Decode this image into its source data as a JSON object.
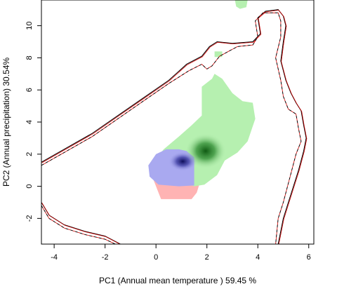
{
  "chart_data": {
    "type": "heatmap",
    "title": "",
    "xlabel": "PC1 (Annual mean temperature ) 59.45 %",
    "ylabel": "PC2 (Annual precipitation) 30.54%",
    "xlim": [
      -4.5,
      6.2
    ],
    "ylim": [
      -3.6,
      11.6
    ],
    "xticks": [
      -4,
      -2,
      0,
      2,
      4,
      6
    ],
    "yticks": [
      -2,
      0,
      2,
      4,
      6,
      8,
      10
    ],
    "grid": false,
    "colors": {
      "green_region": "#b6f0b0",
      "green_core": "#0f5a12",
      "blue_region": "#a9a9f0",
      "blue_core": "#0c0c5a",
      "pink_region": "#ffb3b3",
      "envelope_solid": "#000000",
      "envelope_dashed": "#cc0000"
    },
    "regions": [
      {
        "id": "green",
        "polygon": [
          [
            -0.2,
            1.3
          ],
          [
            0.3,
            2.3
          ],
          [
            0.9,
            3.1
          ],
          [
            1.4,
            3.8
          ],
          [
            1.8,
            4.4
          ],
          [
            1.8,
            6.2
          ],
          [
            2.2,
            6.7
          ],
          [
            2.3,
            7.0
          ],
          [
            2.6,
            6.7
          ],
          [
            3.0,
            5.8
          ],
          [
            3.4,
            5.3
          ],
          [
            3.8,
            5.2
          ],
          [
            3.9,
            4.2
          ],
          [
            3.6,
            2.8
          ],
          [
            3.2,
            2.1
          ],
          [
            2.7,
            1.6
          ],
          [
            2.4,
            0.7
          ],
          [
            1.9,
            0.1
          ],
          [
            1.5,
            0.0
          ],
          [
            1.0,
            0.3
          ],
          [
            0.2,
            0.7
          ]
        ]
      },
      {
        "id": "green-patch",
        "polygon": [
          [
            2.3,
            8.4
          ],
          [
            2.6,
            8.4
          ],
          [
            2.6,
            8.05
          ],
          [
            2.3,
            8.05
          ]
        ]
      },
      {
        "id": "green-top-patch",
        "polygon": [
          [
            3.1,
            11.6
          ],
          [
            3.6,
            11.6
          ],
          [
            3.55,
            11.15
          ],
          [
            3.3,
            11.05
          ],
          [
            3.15,
            11.2
          ]
        ]
      },
      {
        "id": "blue",
        "polygon": [
          [
            -0.3,
            1.3
          ],
          [
            -0.25,
            0.6
          ],
          [
            0.1,
            0.1
          ],
          [
            0.9,
            0.0
          ],
          [
            1.5,
            0.05
          ],
          [
            1.5,
            1.8
          ],
          [
            1.2,
            2.2
          ],
          [
            0.9,
            2.3
          ],
          [
            0.4,
            2.3
          ],
          [
            0.0,
            2.0
          ]
        ]
      },
      {
        "id": "pink",
        "polygon": [
          [
            -0.1,
            0.4
          ],
          [
            0.1,
            -0.4
          ],
          [
            0.2,
            -0.8
          ],
          [
            1.4,
            -0.8
          ],
          [
            1.6,
            -0.4
          ],
          [
            1.7,
            0.1
          ],
          [
            0.8,
            0.1
          ],
          [
            0.2,
            0.1
          ]
        ]
      }
    ],
    "cores": [
      {
        "id": "green-core",
        "x": 1.95,
        "y": 2.2,
        "rx": 0.8,
        "ry": 1.1
      },
      {
        "id": "blue-core",
        "x": 1.05,
        "y": 1.55,
        "rx": 0.55,
        "ry": 0.6
      }
    ],
    "envelope_lines": [
      {
        "id": "outer-solid",
        "style": "solid",
        "points": [
          [
            -4.5,
            1.5
          ],
          [
            -3.5,
            2.4
          ],
          [
            -2.5,
            3.3
          ],
          [
            -1.5,
            4.4
          ],
          [
            -0.5,
            5.5
          ],
          [
            0.5,
            6.6
          ],
          [
            1.2,
            7.6
          ],
          [
            1.8,
            8.1
          ],
          [
            2.1,
            8.7
          ],
          [
            2.4,
            9.0
          ],
          [
            3.0,
            8.9
          ],
          [
            3.8,
            9.0
          ],
          [
            4.1,
            9.5
          ],
          [
            4.0,
            10.5
          ],
          [
            4.3,
            10.9
          ],
          [
            4.8,
            11.0
          ],
          [
            5.0,
            10.6
          ],
          [
            5.1,
            10.0
          ],
          [
            5.0,
            9.0
          ],
          [
            4.9,
            7.8
          ],
          [
            5.1,
            6.6
          ],
          [
            5.3,
            5.8
          ],
          [
            5.5,
            5.2
          ],
          [
            5.7,
            4.7
          ],
          [
            5.8,
            3.8
          ],
          [
            5.9,
            3.0
          ],
          [
            5.8,
            2.2
          ],
          [
            5.6,
            1.0
          ],
          [
            5.2,
            -1.0
          ],
          [
            5.0,
            -2.0
          ],
          [
            4.8,
            -3.6
          ]
        ]
      },
      {
        "id": "inner-dashed",
        "style": "dashed",
        "points": [
          [
            -4.5,
            1.3
          ],
          [
            -3.5,
            2.2
          ],
          [
            -2.5,
            3.1
          ],
          [
            -1.5,
            4.2
          ],
          [
            -0.5,
            5.3
          ],
          [
            0.5,
            6.4
          ],
          [
            1.3,
            7.2
          ],
          [
            1.8,
            7.6
          ],
          [
            2.0,
            7.3
          ],
          [
            2.2,
            7.5
          ],
          [
            2.5,
            8.1
          ],
          [
            3.2,
            8.7
          ],
          [
            3.8,
            8.8
          ],
          [
            4.0,
            9.3
          ],
          [
            3.9,
            10.3
          ],
          [
            4.2,
            10.8
          ],
          [
            4.8,
            10.8
          ],
          [
            4.9,
            10.3
          ],
          [
            4.9,
            9.3
          ],
          [
            4.7,
            8.0
          ],
          [
            4.9,
            6.6
          ],
          [
            5.0,
            5.6
          ],
          [
            5.2,
            4.8
          ],
          [
            5.5,
            4.5
          ],
          [
            5.6,
            3.6
          ],
          [
            5.7,
            2.8
          ],
          [
            5.5,
            2.0
          ],
          [
            5.3,
            0.8
          ],
          [
            5.0,
            -1.0
          ],
          [
            4.8,
            -2.0
          ],
          [
            4.7,
            -3.6
          ]
        ]
      },
      {
        "id": "bottom-left-solid",
        "style": "solid",
        "points": [
          [
            -4.5,
            -1.0
          ],
          [
            -4.2,
            -1.8
          ],
          [
            -3.6,
            -2.4
          ],
          [
            -2.8,
            -2.8
          ],
          [
            -2.0,
            -3.1
          ],
          [
            -1.4,
            -3.6
          ]
        ]
      },
      {
        "id": "bottom-left-dashed",
        "style": "dashed",
        "points": [
          [
            -4.5,
            -1.2
          ],
          [
            -4.2,
            -2.0
          ],
          [
            -3.6,
            -2.6
          ],
          [
            -2.8,
            -3.0
          ],
          [
            -2.0,
            -3.3
          ],
          [
            -1.6,
            -3.6
          ]
        ]
      }
    ]
  }
}
